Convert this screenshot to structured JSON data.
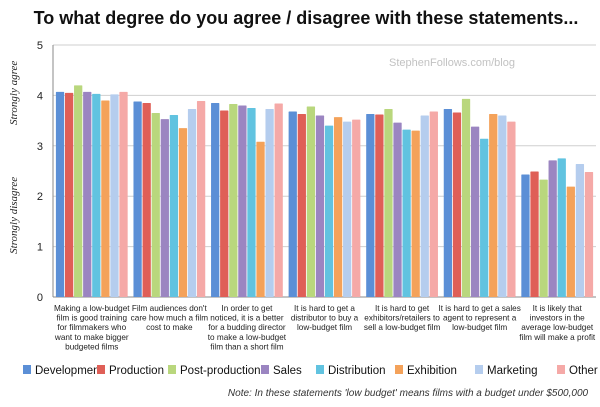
{
  "chart_data": {
    "type": "bar",
    "title": "To what degree do you agree / disagree with these statements...",
    "watermark": "StephenFollows.com/blog",
    "ylabel_top": "Strongly agree",
    "ylabel_bottom": "Strongly disagree",
    "ylim": [
      0,
      5
    ],
    "yticks": [
      0,
      1,
      2,
      3,
      4,
      5
    ],
    "grid": true,
    "legend_position": "bottom",
    "categories": [
      [
        "Making a low-budget",
        "film is good training",
        "for filmmakers who",
        "want to make bigger",
        "budgeted films"
      ],
      [
        "Film audiences don't",
        "care how much a film",
        "cost to make"
      ],
      [
        "In order to get",
        "noticed, it is a better",
        "for a budding director",
        "to make a low-budget",
        "film than a short film"
      ],
      [
        "It is hard to get a",
        "distributor to buy a",
        "low-budget film"
      ],
      [
        "It is hard to get",
        "exhibitors/retailers to",
        "sell a low-budget film"
      ],
      [
        "It is hard to get a sales",
        "agent to represent a",
        "low-budget film"
      ],
      [
        "It is likely that",
        "investors in the",
        "average low-budget",
        "film will make a profit"
      ]
    ],
    "series": [
      {
        "name": "Development",
        "color": "#5b8fd6",
        "values": [
          4.07,
          3.88,
          3.85,
          3.68,
          3.63,
          3.73,
          2.43
        ]
      },
      {
        "name": "Production",
        "color": "#df5f57",
        "values": [
          4.05,
          3.85,
          3.7,
          3.63,
          3.62,
          3.66,
          2.49
        ]
      },
      {
        "name": "Post-production",
        "color": "#b9d77d",
        "values": [
          4.2,
          3.65,
          3.83,
          3.78,
          3.73,
          3.93,
          2.33
        ]
      },
      {
        "name": "Sales",
        "color": "#9b85c1",
        "values": [
          4.07,
          3.53,
          3.8,
          3.6,
          3.46,
          3.38,
          2.71
        ]
      },
      {
        "name": "Distribution",
        "color": "#61c3e0",
        "values": [
          4.03,
          3.61,
          3.75,
          3.4,
          3.32,
          3.14,
          2.75
        ]
      },
      {
        "name": "Exhibition",
        "color": "#f4a25a",
        "values": [
          3.9,
          3.35,
          3.08,
          3.57,
          3.3,
          3.63,
          2.19
        ]
      },
      {
        "name": "Marketing",
        "color": "#b5cdee",
        "values": [
          4.02,
          3.73,
          3.73,
          3.48,
          3.6,
          3.6,
          2.64
        ]
      },
      {
        "name": "Other",
        "color": "#f5a9a7",
        "values": [
          4.07,
          3.89,
          3.84,
          3.52,
          3.68,
          3.48,
          2.48
        ]
      }
    ],
    "note": "Note: In these statements 'low budget' means films with a budget under $500,000"
  }
}
